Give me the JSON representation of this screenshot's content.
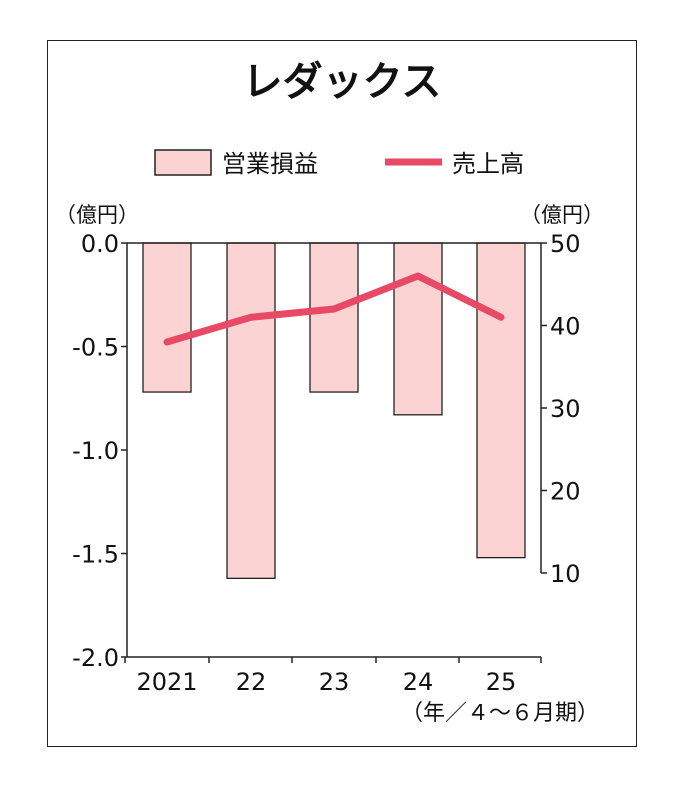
{
  "chart_data": {
    "type": "bar+line",
    "title": "レダックス",
    "categories": [
      "2021",
      "22",
      "23",
      "24",
      "25"
    ],
    "xlabel": "（年／４～６月期）",
    "series": [
      {
        "name": "営業損益",
        "type": "bar",
        "axis": "left",
        "values": [
          -0.72,
          -1.62,
          -0.72,
          -0.83,
          -1.52
        ],
        "color": "#fbd3d3"
      },
      {
        "name": "売上高",
        "type": "line",
        "axis": "right",
        "values": [
          38,
          41,
          42,
          46,
          41
        ],
        "color": "#e84a66"
      }
    ],
    "left_axis": {
      "unit": "（億円）",
      "range": [
        -2.0,
        0.0
      ],
      "ticks": [
        "0.0",
        "-0.5",
        "-1.0",
        "-1.5",
        "-2.0"
      ],
      "tick_values": [
        0,
        -0.5,
        -1,
        -1.5,
        -2
      ]
    },
    "right_axis": {
      "unit": "（億円）",
      "range": [
        10,
        50
      ],
      "ticks": [
        "50",
        "40",
        "30",
        "20",
        "10"
      ],
      "tick_values": [
        50,
        40,
        30,
        20,
        10
      ]
    },
    "legend": "top-center",
    "grid": false
  }
}
